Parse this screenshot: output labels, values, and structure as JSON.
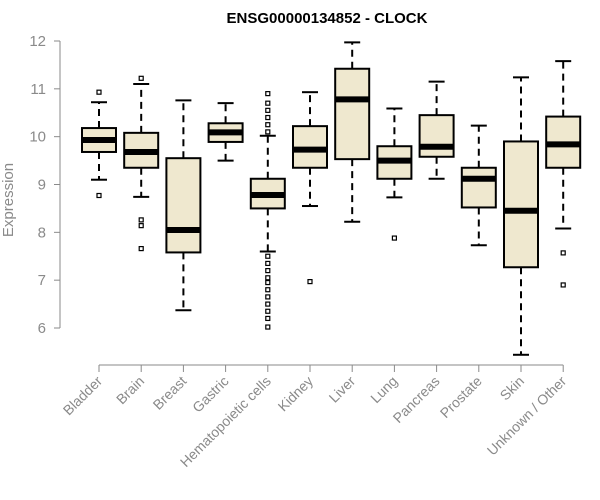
{
  "chart_data": {
    "type": "box",
    "title": "ENSG00000134852 - CLOCK",
    "xlabel": "",
    "ylabel": "Expression",
    "ylim": [
      5.4,
      12.0
    ],
    "yticks": [
      6,
      7,
      8,
      9,
      10,
      11,
      12
    ],
    "grid": false,
    "box_fill": "#efe8cf",
    "box_stroke": "#000000",
    "axis_color": "#8a8a8a",
    "categories": [
      "Bladder",
      "Brain",
      "Breast",
      "Gastric",
      "Hematopoietic cells",
      "Kidney",
      "Liver",
      "Lung",
      "Pancreas",
      "Prostate",
      "Skin",
      "Unknown / Other"
    ],
    "boxes": [
      {
        "category": "Bladder",
        "whisker_low": 9.1,
        "q1": 9.68,
        "median": 9.93,
        "q3": 10.18,
        "whisker_high": 10.72,
        "outliers": [
          8.77,
          10.93
        ]
      },
      {
        "category": "Brain",
        "whisker_low": 8.74,
        "q1": 9.35,
        "median": 9.68,
        "q3": 10.08,
        "whisker_high": 11.1,
        "outliers": [
          8.26,
          8.14,
          7.66,
          11.22
        ]
      },
      {
        "category": "Breast",
        "whisker_low": 6.37,
        "q1": 7.58,
        "median": 8.05,
        "q3": 9.55,
        "whisker_high": 10.76,
        "outliers": []
      },
      {
        "category": "Gastric",
        "whisker_low": 9.5,
        "q1": 9.89,
        "median": 10.09,
        "q3": 10.28,
        "whisker_high": 10.7,
        "outliers": []
      },
      {
        "category": "Hematopoietic cells",
        "whisker_low": 7.6,
        "q1": 8.5,
        "median": 8.78,
        "q3": 9.12,
        "whisker_high": 10.02,
        "outliers": [
          10.1,
          10.25,
          10.4,
          10.55,
          10.7,
          10.9,
          7.5,
          7.35,
          7.2,
          7.05,
          6.95,
          6.8,
          6.65,
          6.5,
          6.35,
          6.2,
          6.02
        ]
      },
      {
        "category": "Kidney",
        "whisker_low": 8.55,
        "q1": 9.35,
        "median": 9.73,
        "q3": 10.22,
        "whisker_high": 10.93,
        "outliers": [
          6.97
        ]
      },
      {
        "category": "Liver",
        "whisker_low": 8.22,
        "q1": 9.53,
        "median": 10.78,
        "q3": 11.42,
        "whisker_high": 11.97,
        "outliers": []
      },
      {
        "category": "Lung",
        "whisker_low": 8.73,
        "q1": 9.12,
        "median": 9.5,
        "q3": 9.8,
        "whisker_high": 10.59,
        "outliers": [
          7.88
        ]
      },
      {
        "category": "Pancreas",
        "whisker_low": 9.12,
        "q1": 9.58,
        "median": 9.79,
        "q3": 10.45,
        "whisker_high": 11.15,
        "outliers": []
      },
      {
        "category": "Prostate",
        "whisker_low": 7.73,
        "q1": 8.52,
        "median": 9.12,
        "q3": 9.35,
        "whisker_high": 10.23,
        "outliers": []
      },
      {
        "category": "Skin",
        "whisker_low": 5.44,
        "q1": 7.27,
        "median": 8.45,
        "q3": 9.9,
        "whisker_high": 11.24,
        "outliers": []
      },
      {
        "category": "Unknown / Other",
        "whisker_low": 8.08,
        "q1": 9.35,
        "median": 9.84,
        "q3": 10.42,
        "whisker_high": 11.58,
        "outliers": [
          7.57,
          6.9
        ]
      }
    ]
  }
}
